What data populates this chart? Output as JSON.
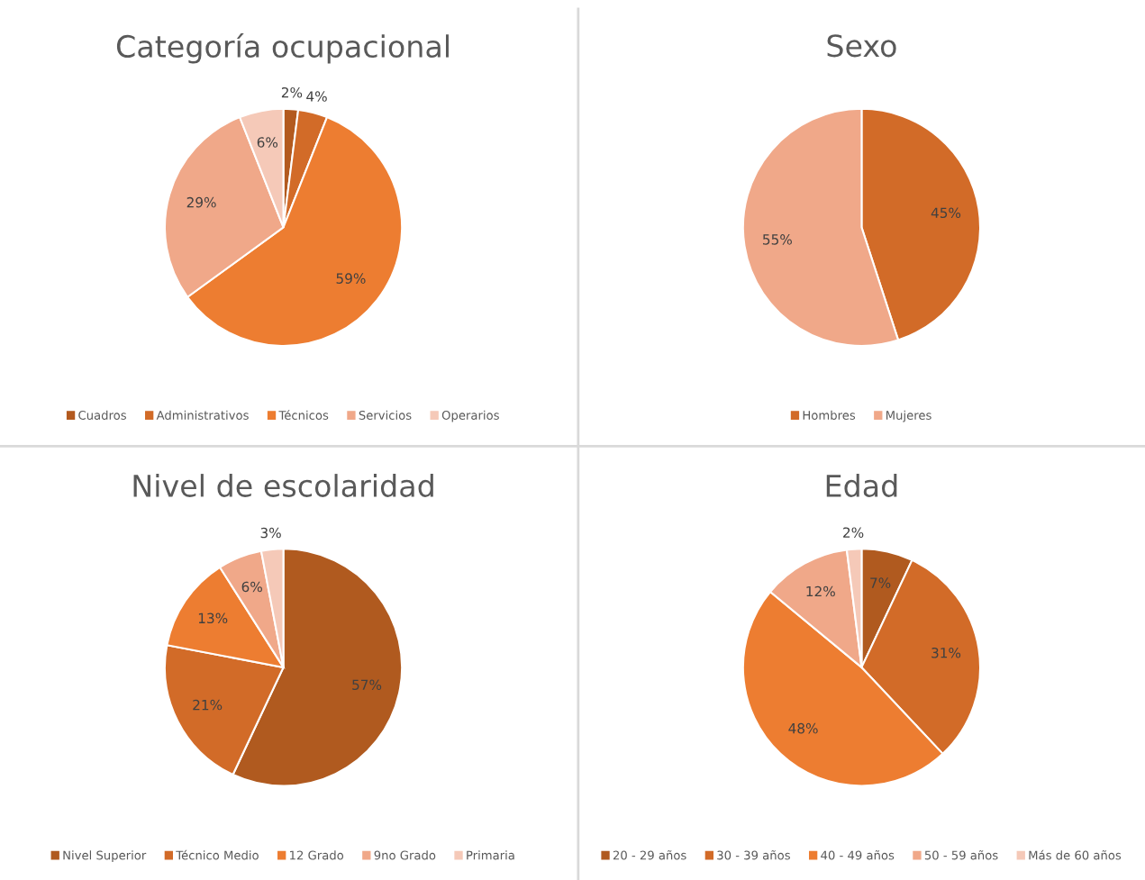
{
  "chart_data": [
    {
      "type": "pie",
      "title": "Categoría ocupacional",
      "categories": [
        "Cuadros",
        "Administrativos",
        "Técnicos",
        "Servicios",
        "Operarios"
      ],
      "values": [
        2,
        4,
        59,
        29,
        6
      ],
      "value_labels": [
        "2%",
        "4%",
        "59%",
        "29%",
        "6%"
      ],
      "colors": [
        "#b35a1f",
        "#d26b28",
        "#ed7d31",
        "#f0a889",
        "#f5c9b8"
      ],
      "legend": "bottom"
    },
    {
      "type": "pie",
      "title": "Sexo",
      "categories": [
        "Hombres",
        "Mujeres"
      ],
      "values": [
        45,
        55
      ],
      "value_labels": [
        "45%",
        "55%"
      ],
      "colors": [
        "#d26b28",
        "#f0a889"
      ],
      "legend": "bottom"
    },
    {
      "type": "pie",
      "title": "Nivel de escolaridad",
      "categories": [
        "Nivel Superior",
        "Técnico Medio",
        "12 Grado",
        "9no Grado",
        "Primaria"
      ],
      "values": [
        57,
        21,
        13,
        6,
        3
      ],
      "value_labels": [
        "57%",
        "21%",
        "13%",
        "6%",
        "3%"
      ],
      "colors": [
        "#b05a1f",
        "#d26b28",
        "#ed7d31",
        "#f0a889",
        "#f5c9b8"
      ],
      "legend": "bottom"
    },
    {
      "type": "pie",
      "title": "Edad",
      "categories": [
        "20 - 29 años",
        "30 - 39 años",
        "40 - 49 años",
        "50 - 59 años",
        "Más de 60 años"
      ],
      "values": [
        7,
        31,
        48,
        12,
        2
      ],
      "value_labels": [
        "7%",
        "31%",
        "48%",
        "12%",
        "2%"
      ],
      "colors": [
        "#b05a1f",
        "#d26b28",
        "#ed7d31",
        "#f0a889",
        "#f5c9b8"
      ],
      "legend": "bottom"
    }
  ]
}
